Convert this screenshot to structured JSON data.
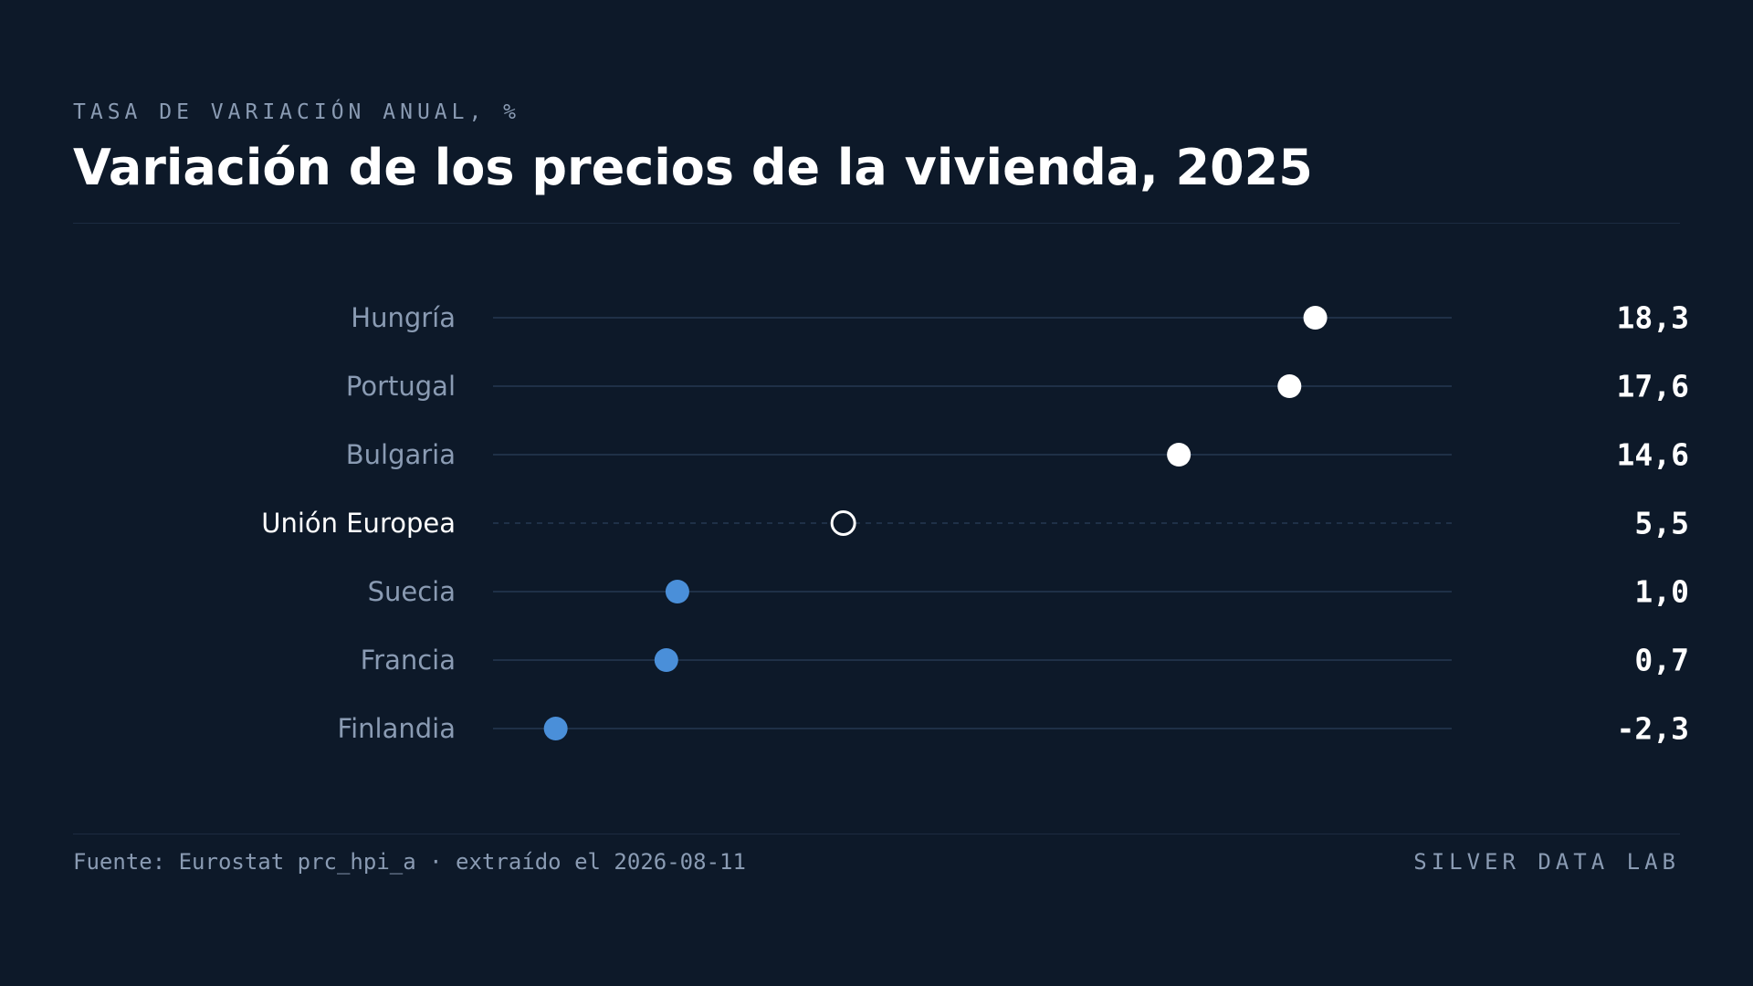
{
  "header": {
    "kicker": "TASA DE VARIACIÓN ANUAL, %",
    "title": "Variación de los precios de la vivienda, 2025"
  },
  "footer": {
    "source": "Fuente: Eurostat prc_hpi_a · extraído el 2026-08-11",
    "brand": "SILVER DATA LAB"
  },
  "colors": {
    "background": "#0d1929",
    "track": "#1f3047",
    "high": "#ffffff",
    "low": "#4a8fd9",
    "reference": "#ffffff"
  },
  "chart_data": {
    "type": "dot",
    "title": "Variación de los precios de la vivienda, 2025",
    "xlabel": "",
    "ylabel": "",
    "xlim": [
      -4,
      22
    ],
    "grid": false,
    "categories": [
      "Hungría",
      "Portugal",
      "Bulgaria",
      "Unión Europea",
      "Suecia",
      "Francia",
      "Finlandia"
    ],
    "values": [
      18.3,
      17.6,
      14.6,
      5.5,
      1.0,
      0.7,
      -2.3
    ],
    "value_labels": [
      "18,3",
      "17,6",
      "14,6",
      "5,5",
      "1,0",
      "0,7",
      "-2,3"
    ],
    "reference_category": "Unión Europea"
  }
}
